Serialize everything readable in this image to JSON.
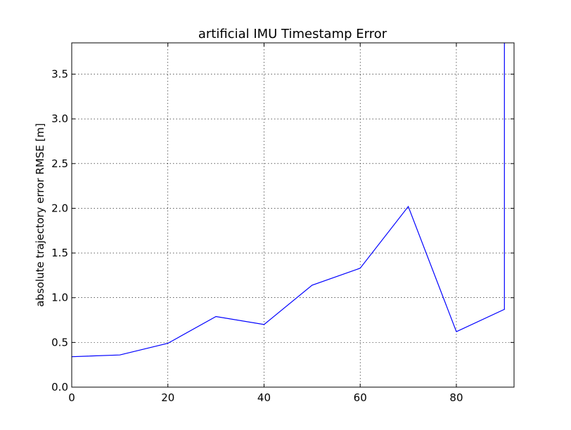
{
  "chart_data": {
    "type": "line",
    "title": "artificial IMU Timestamp Error",
    "xlabel": "",
    "ylabel": "absolute trajectory error RMSE [m]",
    "xlim": [
      0,
      92
    ],
    "ylim": [
      0,
      3.85
    ],
    "xticks": [
      0,
      20,
      40,
      60,
      80
    ],
    "xtick_labels": [
      "0",
      "20",
      "40",
      "60",
      "80"
    ],
    "yticks": [
      0.0,
      0.5,
      1.0,
      1.5,
      2.0,
      2.5,
      3.0,
      3.5
    ],
    "ytick_labels": [
      "0.0",
      "0.5",
      "1.0",
      "1.5",
      "2.0",
      "2.5",
      "3.0",
      "3.5"
    ],
    "grid": true,
    "series": [
      {
        "color": "#0000ff",
        "x": [
          0,
          10,
          20,
          30,
          40,
          50,
          60,
          70,
          80,
          90,
          90
        ],
        "y": [
          0.34,
          0.36,
          0.49,
          0.79,
          0.7,
          1.14,
          1.33,
          2.02,
          0.62,
          0.87,
          3.85
        ]
      }
    ]
  }
}
